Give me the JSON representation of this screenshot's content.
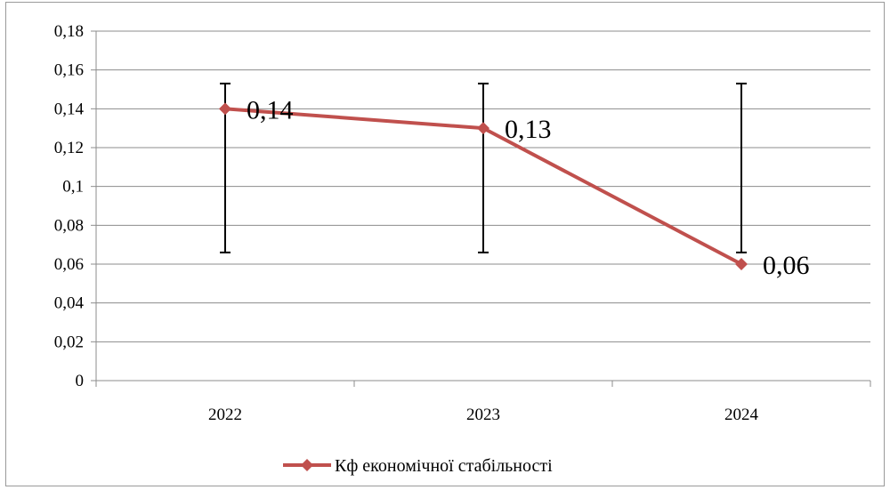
{
  "chart_data": {
    "type": "line",
    "title": "",
    "xlabel": "",
    "ylabel": "",
    "categories": [
      "2022",
      "2023",
      "2024"
    ],
    "ylim": [
      0,
      0.18
    ],
    "y_ticks": [
      0,
      0.02,
      0.04,
      0.06,
      0.08,
      0.1,
      0.12,
      0.14,
      0.16,
      0.18
    ],
    "y_tick_labels": [
      "0",
      "0,02",
      "0,04",
      "0,06",
      "0,08",
      "0,1",
      "0,12",
      "0,14",
      "0,16",
      "0,18"
    ],
    "series": [
      {
        "name": "Кф економічної стабільності",
        "values": [
          0.14,
          0.13,
          0.06
        ],
        "data_labels": [
          "0,14",
          "0,13",
          "0,06"
        ],
        "color": "#c0504d",
        "marker": "diamond"
      }
    ],
    "error_bars": {
      "low": [
        0.066,
        0.066,
        0.066
      ],
      "high": [
        0.153,
        0.153,
        0.153
      ],
      "color": "#000000"
    },
    "grid": true,
    "legend_position": "bottom"
  }
}
